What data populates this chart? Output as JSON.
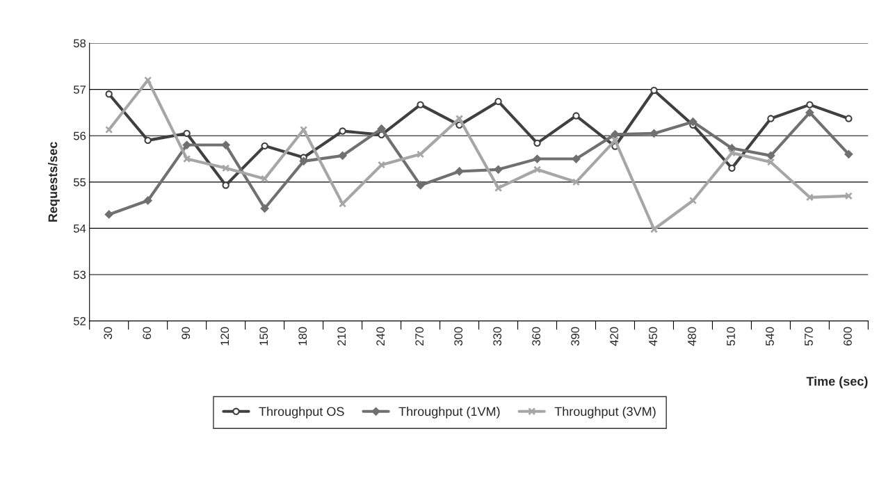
{
  "chart_data": {
    "type": "line",
    "xlabel": "Time (sec)",
    "ylabel": "Requests/sec",
    "categories": [
      "30",
      "60",
      "90",
      "120",
      "150",
      "180",
      "210",
      "240",
      "270",
      "300",
      "330",
      "360",
      "390",
      "420",
      "450",
      "480",
      "510",
      "540",
      "570",
      "600"
    ],
    "series": [
      {
        "name": "Throughput OS",
        "color": "#404040",
        "marker": "circle",
        "values": [
          56.9,
          55.9,
          56.05,
          54.93,
          55.78,
          55.53,
          56.1,
          56.02,
          56.67,
          56.23,
          56.74,
          55.84,
          56.43,
          55.77,
          56.98,
          56.23,
          55.3,
          56.37,
          56.67,
          56.37
        ]
      },
      {
        "name": "Throughput (1VM)",
        "color": "#707070",
        "marker": "diamond",
        "values": [
          54.3,
          54.6,
          55.8,
          55.8,
          54.43,
          55.45,
          55.57,
          56.15,
          54.93,
          55.23,
          55.27,
          55.5,
          55.5,
          56.03,
          56.05,
          56.3,
          55.73,
          55.57,
          56.5,
          55.6
        ]
      },
      {
        "name": "Throughput (3VM)",
        "color": "#a6a6a6",
        "marker": "cross",
        "values": [
          56.13,
          57.2,
          55.5,
          55.3,
          55.07,
          56.13,
          54.53,
          55.37,
          55.6,
          56.37,
          54.87,
          55.27,
          55.0,
          55.9,
          53.98,
          54.6,
          55.63,
          55.43,
          54.67,
          54.7
        ]
      }
    ],
    "ylim": [
      52,
      58
    ],
    "yticks": [
      52,
      53,
      54,
      55,
      56,
      57,
      58
    ],
    "grid": "y",
    "legend": "bottom",
    "line_style": "solid"
  }
}
